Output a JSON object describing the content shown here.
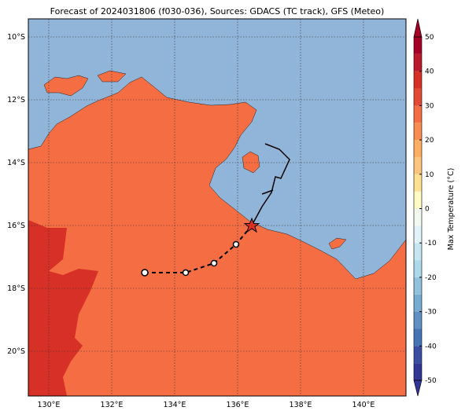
{
  "title": "Forecast of 2024031806 (f030-036), Sources: GDACS (TC track), GFS (Meteo)",
  "lat_labels": [
    "10°S",
    "12°S",
    "14°S",
    "16°S",
    "18°S",
    "20°S"
  ],
  "lon_labels": [
    "130°E",
    "132°E",
    "134°E",
    "136°E",
    "138°E",
    "140°E"
  ],
  "colorbar": {
    "label": "Max Temperature (°C)",
    "ticks": [
      50,
      40,
      30,
      20,
      10,
      0,
      -10,
      -20,
      -30,
      -40,
      -50
    ]
  }
}
